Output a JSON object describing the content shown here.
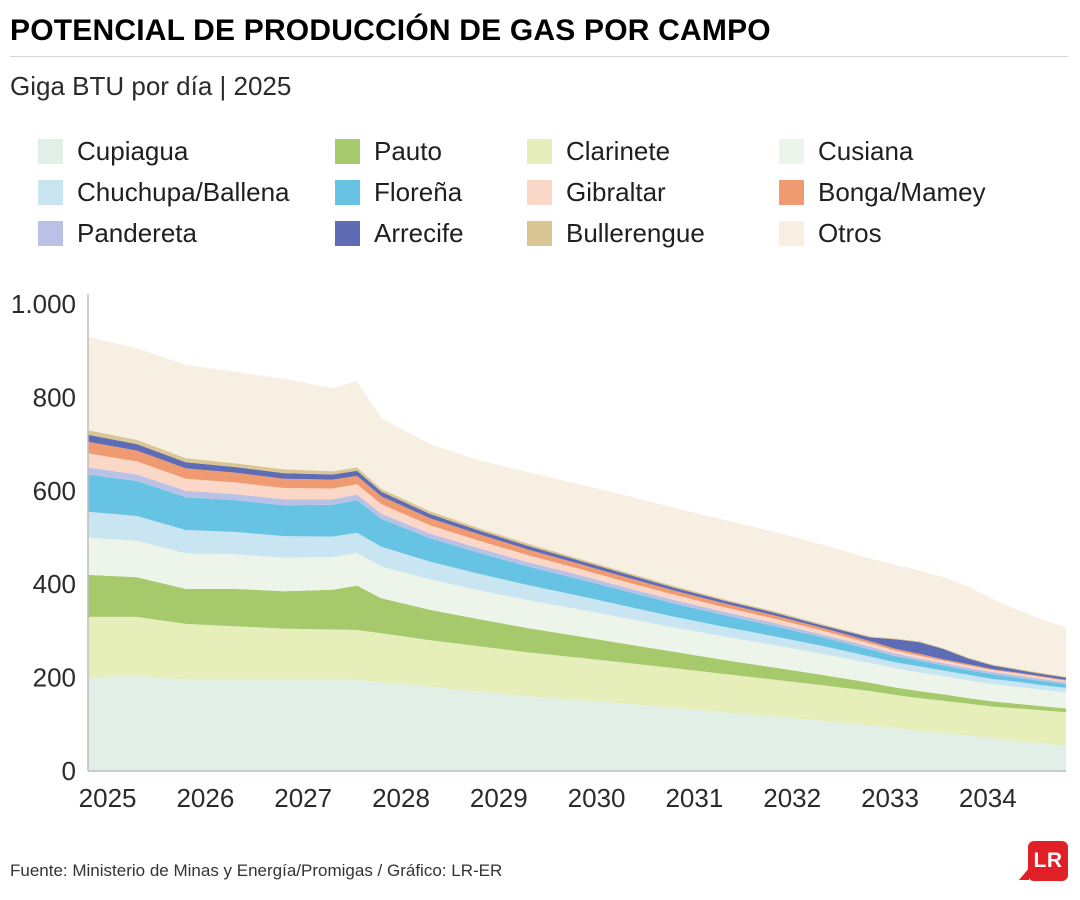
{
  "header": {
    "title": "POTENCIAL DE PRODUCCIÓN DE GAS POR CAMPO",
    "subtitle": "Giga BTU por día | 2025"
  },
  "legend": {
    "display_order": [
      "Cupiagua",
      "Pauto",
      "Clarinete",
      "Cusiana",
      "Chuchupa/Ballena",
      "Floreña",
      "Gibraltar",
      "Bonga/Mamey",
      "Pandereta",
      "Arrecife",
      "Bullerengue",
      "Otros"
    ]
  },
  "chart_data": {
    "type": "area",
    "stacked": true,
    "title": "POTENCIAL DE PRODUCCIÓN DE GAS POR CAMPO",
    "ylabel": "Giga BTU por día",
    "grid": false,
    "legend_position": "top",
    "xlim": [
      2025,
      2035
    ],
    "ylim": [
      0,
      1000
    ],
    "y_ticks": {
      "values": [
        0,
        200,
        400,
        600,
        800,
        1000
      ],
      "labels": [
        "0",
        "200",
        "400",
        "600",
        "800",
        "1.000"
      ]
    },
    "x_tick_labels": [
      "2025",
      "2026",
      "2027",
      "2028",
      "2029",
      "2030",
      "2031",
      "2032",
      "2033",
      "2034"
    ],
    "x": [
      2025,
      2025.5,
      2026,
      2026.5,
      2027,
      2027.5,
      2027.75,
      2028,
      2028.5,
      2029,
      2029.5,
      2030,
      2030.5,
      2031,
      2031.5,
      2032,
      2032.5,
      2033,
      2033.25,
      2033.5,
      2033.75,
      2034,
      2034.25,
      2034.5,
      2034.75,
      2035
    ],
    "series": [
      {
        "name": "Cupiagua",
        "color": "#e1efe7",
        "values": [
          200,
          205,
          195,
          195,
          195,
          195,
          195,
          190,
          180,
          170,
          160,
          152,
          144,
          135,
          126,
          117,
          108,
          98,
          92,
          86,
          81,
          76,
          70,
          64,
          59,
          54
        ]
      },
      {
        "name": "Clarinete",
        "color": "#e6eeba",
        "values": [
          130,
          125,
          120,
          115,
          110,
          108,
          107,
          105,
          100,
          97,
          94,
          91,
          88,
          85,
          82,
          79,
          76,
          73,
          71,
          70,
          69,
          68,
          68,
          70,
          71,
          72
        ]
      },
      {
        "name": "Pauto",
        "color": "#a6ca6b",
        "values": [
          90,
          85,
          75,
          80,
          80,
          85,
          95,
          75,
          65,
          58,
          52,
          46,
          40,
          35,
          30,
          26,
          22,
          18,
          16,
          15,
          14,
          12,
          11,
          10,
          9,
          8
        ]
      },
      {
        "name": "Cusiana",
        "color": "#edf5eb",
        "values": [
          80,
          78,
          76,
          74,
          72,
          70,
          70,
          68,
          65,
          62,
          60,
          58,
          55,
          52,
          50,
          48,
          45,
          42,
          41,
          40,
          39,
          38,
          37,
          36,
          35,
          34
        ]
      },
      {
        "name": "Chuchupa/Ballena",
        "color": "#c8e5f1",
        "values": [
          55,
          53,
          50,
          48,
          46,
          44,
          43,
          42,
          38,
          35,
          32,
          29,
          26,
          23,
          21,
          19,
          17,
          14,
          13,
          13,
          12,
          12,
          11,
          11,
          10,
          10
        ]
      },
      {
        "name": "Floreña",
        "color": "#66c3e3",
        "values": [
          80,
          75,
          70,
          68,
          66,
          68,
          70,
          60,
          50,
          45,
          40,
          36,
          32,
          28,
          25,
          22,
          19,
          15,
          13,
          12,
          11,
          10,
          10,
          9,
          9,
          8
        ]
      },
      {
        "name": "Pandereta",
        "color": "#b9c2e6",
        "values": [
          15,
          14,
          14,
          13,
          13,
          12,
          12,
          11,
          10,
          10,
          9,
          9,
          8,
          8,
          7,
          7,
          6,
          6,
          6,
          5,
          5,
          5,
          5,
          5,
          4,
          4
        ]
      },
      {
        "name": "Gibraltar",
        "color": "#fbd7c7",
        "values": [
          30,
          28,
          26,
          25,
          24,
          23,
          22,
          20,
          18,
          16,
          15,
          13,
          12,
          11,
          10,
          9,
          8,
          7,
          6,
          6,
          5,
          5,
          4,
          4,
          4,
          3
        ]
      },
      {
        "name": "Bonga/Mamey",
        "color": "#f09a72",
        "values": [
          25,
          23,
          22,
          21,
          20,
          19,
          18,
          17,
          15,
          14,
          12,
          11,
          10,
          9,
          8,
          7,
          6,
          5,
          4,
          4,
          3,
          3,
          2,
          2,
          2,
          2
        ]
      },
      {
        "name": "Arrecife",
        "color": "#5d6cb5",
        "values": [
          15,
          14,
          13,
          12,
          12,
          11,
          11,
          10,
          9,
          8,
          8,
          7,
          7,
          6,
          6,
          6,
          5,
          8,
          20,
          25,
          22,
          12,
          8,
          6,
          5,
          5
        ]
      },
      {
        "name": "Bullerengue",
        "color": "#d9c694",
        "values": [
          10,
          9,
          9,
          8,
          8,
          7,
          7,
          6,
          6,
          5,
          5,
          4,
          4,
          4,
          3,
          3,
          3,
          2,
          2,
          2,
          2,
          2,
          2,
          2,
          2,
          2
        ]
      },
      {
        "name": "Otros",
        "color": "#f8efe3",
        "values": [
          200,
          196,
          200,
          196,
          194,
          178,
          185,
          151,
          144,
          145,
          153,
          159,
          164,
          167,
          170,
          170,
          170,
          167,
          158,
          152,
          152,
          152,
          140,
          126,
          115,
          106
        ]
      }
    ]
  },
  "footer": {
    "source": "Fuente: Ministerio de Minas y Energía/Promigas / Gráfico: LR-ER",
    "logo_text": "LR",
    "logo_color": "#e01f26"
  }
}
